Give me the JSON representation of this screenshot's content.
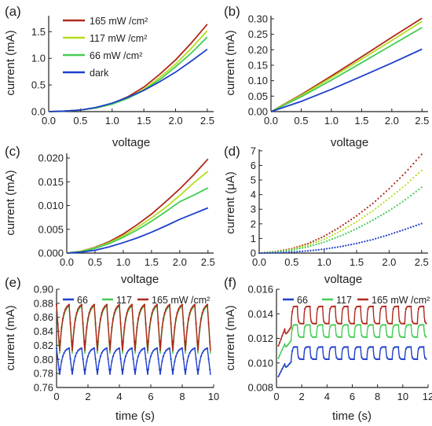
{
  "colors": {
    "c165": "#b0281c",
    "c117": "#b5dd1f",
    "c66": "#45cc55",
    "dark": "#1f3fcc",
    "t66": "#1f3fcc",
    "t117": "#45cc55",
    "t165": "#b0281c"
  },
  "chart_data": [
    {
      "id": "a",
      "panel_label": "(a)",
      "type": "line",
      "xlabel": "voltage",
      "ylabel": "current (mA)",
      "xlim": [
        0,
        2.6
      ],
      "ylim": [
        0,
        1.8
      ],
      "xticks": [
        0.0,
        0.5,
        1.0,
        1.5,
        2.0,
        2.5
      ],
      "yticks": [
        0.0,
        0.5,
        1.0,
        1.5
      ],
      "xtick_labels": [
        "0.0",
        "0.5",
        "1.0",
        "1.5",
        "2.0",
        "2.5"
      ],
      "ytick_labels": [
        "0.0",
        "0.5",
        "1.0",
        "1.5"
      ],
      "legend": {
        "position": "top-left"
      },
      "series": [
        {
          "name": "165 mW /cm²",
          "color_key": "c165",
          "x": [
            0,
            0.25,
            0.5,
            0.75,
            1.0,
            1.25,
            1.5,
            1.75,
            2.0,
            2.25,
            2.5
          ],
          "y": [
            0,
            0.01,
            0.03,
            0.07,
            0.15,
            0.28,
            0.46,
            0.7,
            0.97,
            1.29,
            1.64
          ]
        },
        {
          "name": "117 mW /cm²",
          "color_key": "c117",
          "x": [
            0,
            0.25,
            0.5,
            0.75,
            1.0,
            1.25,
            1.5,
            1.75,
            2.0,
            2.25,
            2.5
          ],
          "y": [
            0,
            0.01,
            0.03,
            0.07,
            0.14,
            0.26,
            0.42,
            0.64,
            0.89,
            1.19,
            1.52
          ]
        },
        {
          "name": "66 mW /cm²",
          "color_key": "c66",
          "x": [
            0,
            0.25,
            0.5,
            0.75,
            1.0,
            1.25,
            1.5,
            1.75,
            2.0,
            2.25,
            2.5
          ],
          "y": [
            0,
            0.01,
            0.03,
            0.07,
            0.14,
            0.25,
            0.4,
            0.6,
            0.84,
            1.1,
            1.4
          ]
        },
        {
          "name": "dark",
          "color_key": "dark",
          "x": [
            0,
            0.25,
            0.5,
            0.75,
            1.0,
            1.25,
            1.5,
            1.75,
            2.0,
            2.25,
            2.5
          ],
          "y": [
            0,
            0.01,
            0.03,
            0.08,
            0.16,
            0.27,
            0.4,
            0.56,
            0.74,
            0.95,
            1.17
          ]
        }
      ]
    },
    {
      "id": "b",
      "panel_label": "(b)",
      "type": "line",
      "xlabel": "voltage",
      "ylabel": "current (mA)",
      "xlim": [
        0,
        2.6
      ],
      "ylim": [
        0,
        0.31
      ],
      "xticks": [
        0.0,
        0.5,
        1.0,
        1.5,
        2.0,
        2.5
      ],
      "yticks": [
        0.0,
        0.05,
        0.1,
        0.15,
        0.2,
        0.25,
        0.3
      ],
      "xtick_labels": [
        "0.0",
        "0.5",
        "1.0",
        "1.5",
        "2.0",
        "2.5"
      ],
      "ytick_labels": [
        "0.00",
        "0.05",
        "0.10",
        "0.15",
        "0.20",
        "0.25",
        "0.30"
      ],
      "series": [
        {
          "color_key": "c165",
          "x": [
            0,
            0.5,
            1.0,
            1.5,
            2.0,
            2.5
          ],
          "y": [
            0,
            0.055,
            0.115,
            0.177,
            0.24,
            0.302
          ]
        },
        {
          "color_key": "c117",
          "x": [
            0,
            0.5,
            1.0,
            1.5,
            2.0,
            2.5
          ],
          "y": [
            0,
            0.052,
            0.11,
            0.17,
            0.23,
            0.292
          ]
        },
        {
          "color_key": "c66",
          "x": [
            0,
            0.5,
            1.0,
            1.5,
            2.0,
            2.5
          ],
          "y": [
            0,
            0.048,
            0.102,
            0.158,
            0.215,
            0.272
          ]
        },
        {
          "color_key": "dark",
          "x": [
            0,
            0.5,
            1.0,
            1.5,
            2.0,
            2.5
          ],
          "y": [
            0,
            0.033,
            0.072,
            0.114,
            0.157,
            0.202
          ]
        }
      ]
    },
    {
      "id": "c",
      "panel_label": "(c)",
      "type": "line",
      "xlabel": "voltage",
      "ylabel": "current (mA)",
      "xlim": [
        0,
        2.6
      ],
      "ylim": [
        0,
        0.021
      ],
      "xticks": [
        0.0,
        0.5,
        1.0,
        1.5,
        2.0,
        2.5
      ],
      "yticks": [
        0.0,
        0.005,
        0.01,
        0.015,
        0.02
      ],
      "xtick_labels": [
        "0.0",
        "0.5",
        "1.0",
        "1.5",
        "2.0",
        "2.5"
      ],
      "ytick_labels": [
        "0.000",
        "0.005",
        "0.010",
        "0.015",
        "0.020"
      ],
      "series": [
        {
          "color_key": "c165",
          "x": [
            0,
            0.25,
            0.5,
            0.75,
            1.0,
            1.25,
            1.5,
            1.75,
            2.0,
            2.25,
            2.5
          ],
          "y": [
            0,
            0.0004,
            0.0012,
            0.0024,
            0.004,
            0.006,
            0.0082,
            0.0108,
            0.0135,
            0.0165,
            0.0198
          ]
        },
        {
          "color_key": "c117",
          "x": [
            0,
            0.25,
            0.5,
            0.75,
            1.0,
            1.25,
            1.5,
            1.75,
            2.0,
            2.25,
            2.5
          ],
          "y": [
            0,
            0.0004,
            0.0011,
            0.0022,
            0.0036,
            0.0054,
            0.0074,
            0.0096,
            0.0121,
            0.0148,
            0.0172
          ]
        },
        {
          "color_key": "c66",
          "x": [
            0,
            0.25,
            0.5,
            0.75,
            1.0,
            1.25,
            1.5,
            1.75,
            2.0,
            2.25,
            2.5
          ],
          "y": [
            0,
            0.0003,
            0.001,
            0.002,
            0.0033,
            0.0049,
            0.0067,
            0.0087,
            0.0108,
            0.0122,
            0.0137
          ]
        },
        {
          "color_key": "dark",
          "x": [
            0,
            0.25,
            0.5,
            0.75,
            1.0,
            1.25,
            1.5,
            1.75,
            2.0,
            2.25,
            2.5
          ],
          "y": [
            0,
            0.0002,
            0.0006,
            0.0013,
            0.0022,
            0.0032,
            0.0044,
            0.0057,
            0.0071,
            0.0083,
            0.0095
          ]
        }
      ]
    },
    {
      "id": "d",
      "panel_label": "(d)",
      "type": "scatter",
      "xlabel": "voltage",
      "ylabel": "current (μA)",
      "xlim": [
        0,
        2.6
      ],
      "ylim": [
        0,
        7.1
      ],
      "xticks": [
        0.0,
        0.5,
        1.0,
        1.5,
        2.0,
        2.5
      ],
      "yticks": [
        0,
        1,
        2,
        3,
        4,
        5,
        6,
        7
      ],
      "xtick_labels": [
        "0.0",
        "0.5",
        "1.0",
        "1.5",
        "2.0",
        "2.5"
      ],
      "ytick_labels": [
        "0",
        "1",
        "2",
        "3",
        "4",
        "5",
        "6",
        "7"
      ],
      "series": [
        {
          "color_key": "c165",
          "x": [
            0,
            0.25,
            0.5,
            0.75,
            1.0,
            1.25,
            1.5,
            1.75,
            2.0,
            2.25,
            2.5
          ],
          "y": [
            0,
            0.1,
            0.3,
            0.65,
            1.15,
            1.8,
            2.55,
            3.4,
            4.4,
            5.5,
            6.75
          ]
        },
        {
          "color_key": "c117",
          "x": [
            0,
            0.25,
            0.5,
            0.75,
            1.0,
            1.25,
            1.5,
            1.75,
            2.0,
            2.25,
            2.5
          ],
          "y": [
            0,
            0.08,
            0.25,
            0.55,
            0.95,
            1.5,
            2.15,
            2.9,
            3.75,
            4.65,
            5.65
          ]
        },
        {
          "color_key": "c66",
          "x": [
            0,
            0.25,
            0.5,
            0.75,
            1.0,
            1.25,
            1.5,
            1.75,
            2.0,
            2.25,
            2.5
          ],
          "y": [
            0,
            0.07,
            0.2,
            0.43,
            0.75,
            1.17,
            1.67,
            2.25,
            2.9,
            3.65,
            4.5
          ]
        },
        {
          "color_key": "dark",
          "x": [
            0,
            0.25,
            0.5,
            0.75,
            1.0,
            1.25,
            1.5,
            1.75,
            2.0,
            2.25,
            2.5
          ],
          "y": [
            0,
            0.02,
            0.07,
            0.15,
            0.27,
            0.44,
            0.66,
            0.93,
            1.26,
            1.63,
            2.02
          ]
        }
      ]
    },
    {
      "id": "e",
      "panel_label": "(e)",
      "type": "line",
      "xlabel": "time (s)",
      "ylabel": "current (mA)",
      "xlim": [
        0,
        10
      ],
      "ylim": [
        0.76,
        0.9
      ],
      "xticks": [
        0,
        2,
        4,
        6,
        8,
        10
      ],
      "yticks": [
        0.76,
        0.78,
        0.8,
        0.82,
        0.84,
        0.86,
        0.88,
        0.9
      ],
      "xtick_labels": [
        "0",
        "2",
        "4",
        "6",
        "8",
        "10"
      ],
      "ytick_labels": [
        "0.76",
        "0.78",
        "0.80",
        "0.82",
        "0.84",
        "0.86",
        "0.88",
        "0.90"
      ],
      "legend": {
        "position": "top",
        "labels": [
          "66",
          "117",
          "165 mW /cm²"
        ],
        "color_keys": [
          "t66",
          "t117",
          "t165"
        ]
      },
      "series": [
        {
          "name": "66",
          "color_key": "t66",
          "waveform": "sawtooth",
          "period_s": 0.8,
          "t_start": 0,
          "t_end": 9.8,
          "low": 0.778,
          "high": 0.816
        },
        {
          "name": "117",
          "color_key": "t117",
          "waveform": "sawtooth",
          "period_s": 0.8,
          "t_start": 0,
          "t_end": 9.8,
          "low": 0.808,
          "high": 0.876
        },
        {
          "name": "165 mW /cm²",
          "color_key": "t165",
          "waveform": "sawtooth",
          "period_s": 0.8,
          "t_start": 0,
          "t_end": 9.8,
          "low": 0.812,
          "high": 0.878
        }
      ]
    },
    {
      "id": "f",
      "panel_label": "(f)",
      "type": "line",
      "xlabel": "time (s)",
      "ylabel": "current (mA)",
      "xlim": [
        0,
        12
      ],
      "ylim": [
        0.008,
        0.016
      ],
      "xticks": [
        0,
        2,
        4,
        6,
        8,
        10,
        12
      ],
      "yticks": [
        0.008,
        0.01,
        0.012,
        0.014,
        0.016
      ],
      "xtick_labels": [
        "0",
        "2",
        "4",
        "6",
        "8",
        "10",
        "12"
      ],
      "ytick_labels": [
        "0.008",
        "0.010",
        "0.012",
        "0.014",
        "0.016"
      ],
      "legend": {
        "position": "top",
        "labels": [
          "66",
          "117",
          "165 mW /cm²"
        ],
        "color_keys": [
          "t66",
          "t117",
          "t165"
        ]
      },
      "series": [
        {
          "name": "66",
          "color_key": "t66",
          "waveform": "square",
          "period_s": 1.0,
          "t_start": 0.15,
          "t_end": 11.9,
          "low": 0.0103,
          "high": 0.0113,
          "initial": 0.0089
        },
        {
          "name": "117",
          "color_key": "t117",
          "waveform": "square",
          "period_s": 1.0,
          "t_start": 0.15,
          "t_end": 11.9,
          "low": 0.0121,
          "high": 0.0131,
          "initial": 0.0104
        },
        {
          "name": "165 mW /cm²",
          "color_key": "t165",
          "waveform": "square",
          "period_s": 1.0,
          "t_start": 0.15,
          "t_end": 11.9,
          "low": 0.0132,
          "high": 0.0146,
          "initial": 0.0114
        }
      ]
    }
  ]
}
